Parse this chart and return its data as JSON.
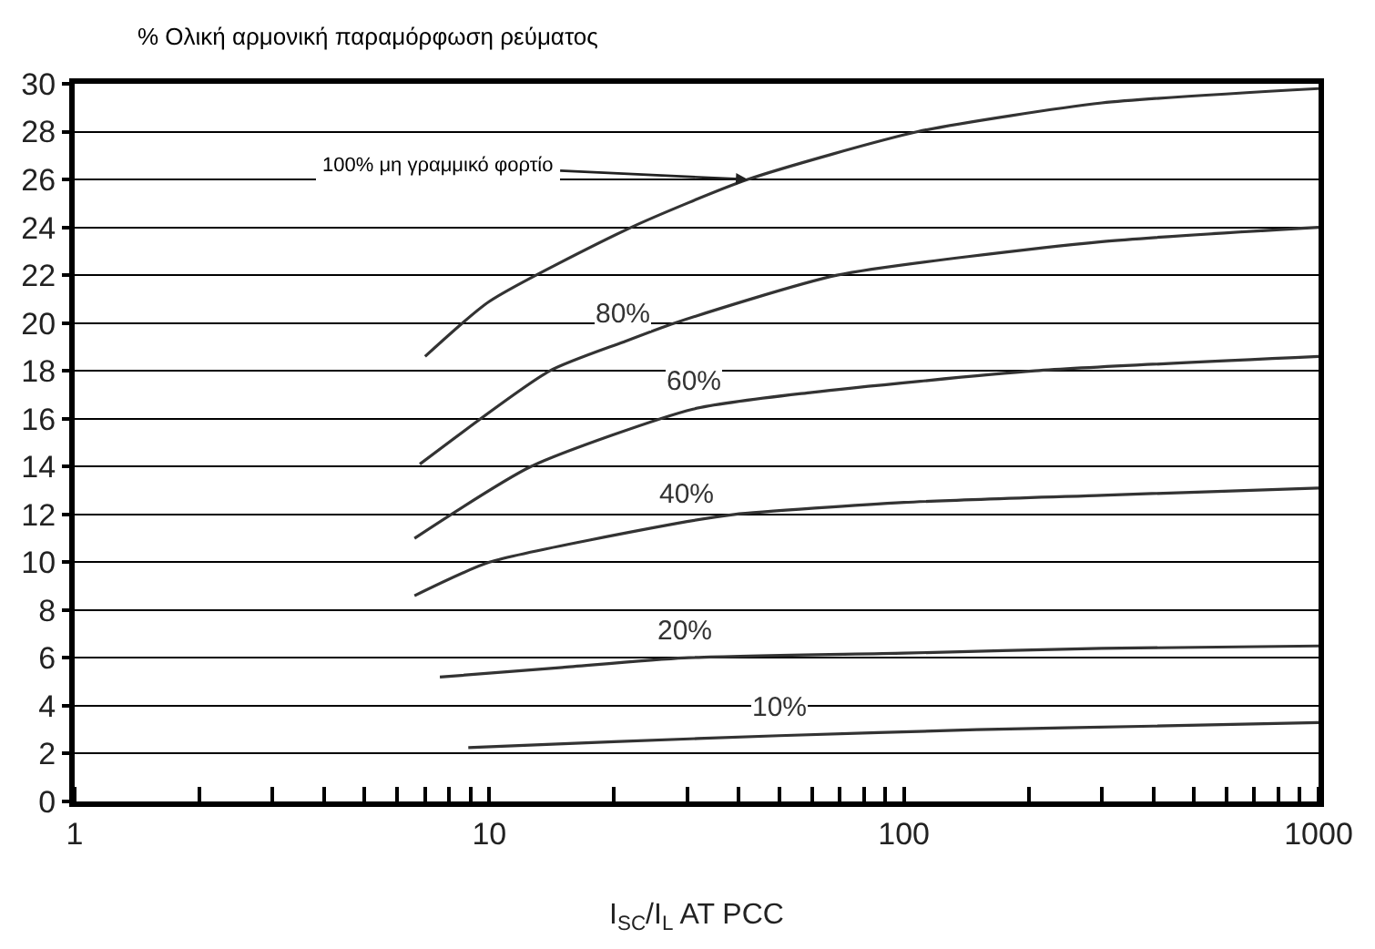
{
  "chart_data": {
    "type": "line",
    "title": "% Ολική αρμονική παραμόρφωση ρεύματος",
    "xlabel": "I$_{SC}$/I$_{L}$ AT PCC",
    "log": "x",
    "grid": "y",
    "legend": false,
    "marker": "none",
    "line_style": "solid",
    "xlim": [
      1,
      1000
    ],
    "xticks": [
      1,
      10,
      100,
      1000
    ],
    "ylim": [
      0,
      30
    ],
    "yticks": [
      0,
      2,
      4,
      6,
      8,
      10,
      12,
      14,
      16,
      18,
      20,
      22,
      24,
      26,
      28,
      30
    ],
    "annotations": [
      {
        "text": "100% μη γραμμικό φορτίο",
        "x": 42,
        "y": 26
      }
    ],
    "series": [
      {
        "color": "#333333",
        "x": [
          7,
          10,
          22,
          42,
          108,
          300,
          1000
        ],
        "values": [
          18.6,
          20.9,
          24,
          26,
          28,
          29.2,
          29.8
        ]
      },
      {
        "name": "80%",
        "color": "#333333",
        "x": [
          6.8,
          14,
          21,
          28,
          69,
          300,
          1000
        ],
        "values": [
          14.1,
          18,
          19.2,
          20,
          22,
          23.4,
          24
        ]
      },
      {
        "name": "60%",
        "color": "#333333",
        "x": [
          6.6,
          12.6,
          31,
          60,
          207,
          1000
        ],
        "values": [
          11,
          14,
          16.4,
          17.1,
          18,
          18.6
        ]
      },
      {
        "name": "40%",
        "color": "#333333",
        "x": [
          6.6,
          10,
          30,
          39,
          100,
          300,
          1000
        ],
        "values": [
          8.6,
          10,
          11.7,
          12,
          12.5,
          12.8,
          13.1
        ]
      },
      {
        "name": "20%",
        "color": "#333333",
        "x": [
          7.6,
          15,
          29.5,
          100,
          300,
          1000
        ],
        "values": [
          5.2,
          5.6,
          6,
          6.2,
          6.4,
          6.5
        ]
      },
      {
        "name": "10%",
        "color": "#333333",
        "x": [
          8.9,
          20,
          50,
          150,
          400,
          1000
        ],
        "values": [
          2.25,
          2.5,
          2.75,
          3,
          3.15,
          3.3
        ]
      }
    ]
  }
}
